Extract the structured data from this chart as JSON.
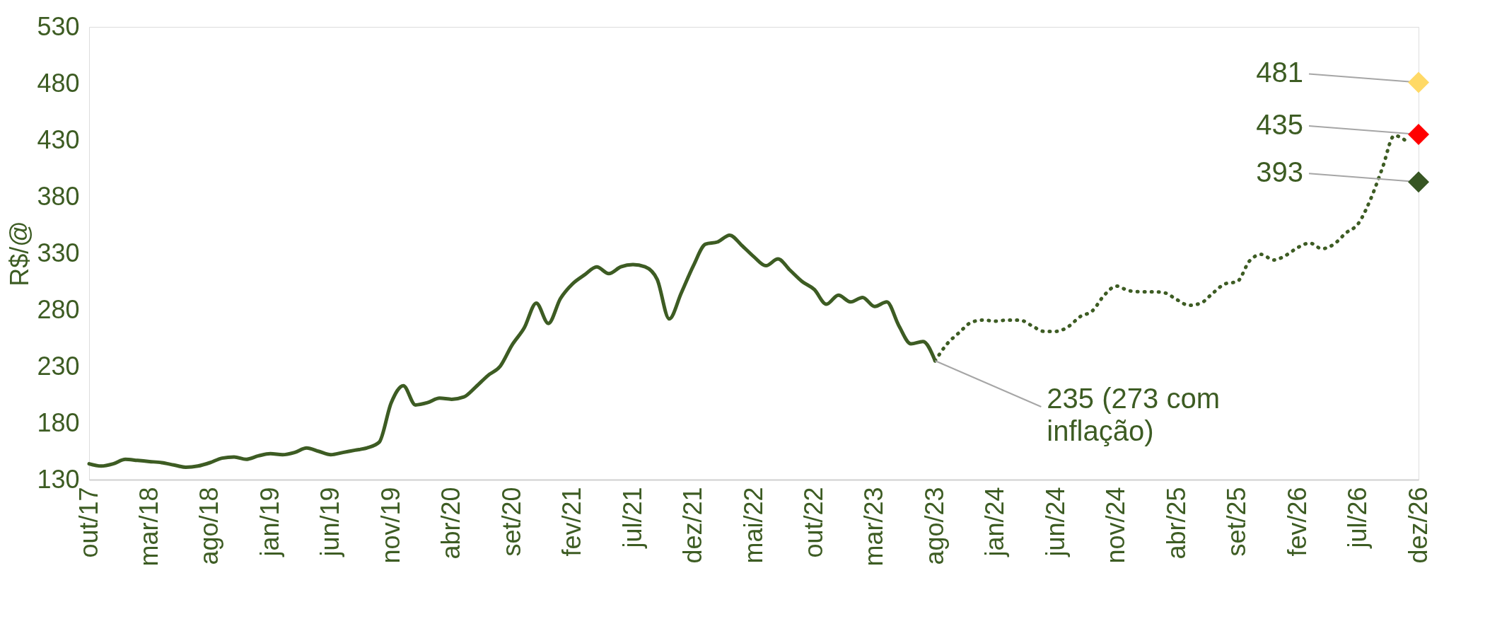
{
  "chart_data": {
    "type": "line",
    "ylabel": "R$/@",
    "categories": [
      "out/17",
      null,
      null,
      null,
      null,
      "mar/18",
      null,
      null,
      null,
      null,
      "ago/18",
      null,
      null,
      null,
      null,
      "jan/19",
      null,
      null,
      null,
      null,
      "jun/19",
      null,
      null,
      null,
      null,
      "nov/19",
      null,
      null,
      null,
      null,
      "abr/20",
      null,
      null,
      null,
      null,
      "set/20",
      null,
      null,
      null,
      null,
      "fev/21",
      null,
      null,
      null,
      null,
      "jul/21",
      null,
      null,
      null,
      null,
      "dez/21",
      null,
      null,
      null,
      null,
      "mai/22",
      null,
      null,
      null,
      null,
      "out/22",
      null,
      null,
      null,
      null,
      "mar/23",
      null,
      null,
      null,
      null,
      "ago/23",
      null,
      null,
      null,
      null,
      "jan/24",
      null,
      null,
      null,
      null,
      "jun/24",
      null,
      null,
      null,
      null,
      "nov/24",
      null,
      null,
      null,
      null,
      "abr/25",
      null,
      null,
      null,
      null,
      "set/25",
      null,
      null,
      null,
      null,
      "fev/26",
      null,
      null,
      null,
      null,
      "jul/26",
      null,
      null,
      null,
      null,
      "dez/26"
    ],
    "series": [
      {
        "color": "#3d5c23",
        "line_style": "solid",
        "values": [
          144,
          142,
          144,
          148,
          147,
          146,
          145,
          143,
          141,
          142,
          145,
          149,
          150,
          148,
          151,
          153,
          152,
          154,
          158,
          155,
          152,
          154,
          156,
          158,
          163,
          198,
          213,
          196,
          198,
          202,
          201,
          203,
          212,
          222,
          230,
          249,
          264,
          286,
          268,
          290,
          303,
          311,
          318,
          312,
          318,
          320,
          318,
          307,
          272,
          295,
          319,
          338,
          340,
          346,
          337,
          327,
          319,
          325,
          315,
          305,
          298,
          285,
          293,
          287,
          291,
          283,
          287,
          266,
          250,
          252,
          235,
          null,
          null,
          null,
          null,
          null,
          null,
          null,
          null,
          null,
          null,
          null,
          null,
          null,
          null,
          null,
          null,
          null,
          null,
          null,
          null,
          null,
          null,
          null,
          null,
          null,
          null,
          null,
          null,
          null,
          null,
          null,
          null,
          null,
          null,
          null,
          null,
          null,
          null,
          null,
          null
        ]
      },
      {
        "color": "#3d5c23",
        "line_style": "dotted",
        "values": [
          null,
          null,
          null,
          null,
          null,
          null,
          null,
          null,
          null,
          null,
          null,
          null,
          null,
          null,
          null,
          null,
          null,
          null,
          null,
          null,
          null,
          null,
          null,
          null,
          null,
          null,
          null,
          null,
          null,
          null,
          null,
          null,
          null,
          null,
          null,
          null,
          null,
          null,
          null,
          null,
          null,
          null,
          null,
          null,
          null,
          null,
          null,
          null,
          null,
          null,
          null,
          null,
          null,
          null,
          null,
          null,
          null,
          null,
          null,
          null,
          null,
          null,
          null,
          null,
          null,
          null,
          null,
          null,
          null,
          null,
          235,
          250,
          260,
          269,
          271,
          270,
          271,
          271,
          266,
          261,
          261,
          265,
          274,
          279,
          293,
          301,
          297,
          296,
          296,
          295,
          289,
          284,
          286,
          295,
          303,
          305,
          323,
          329,
          324,
          328,
          335,
          339,
          334,
          338,
          348,
          356,
          377,
          405,
          434,
          429,
          null
        ]
      },
      {
        "type": "scatter",
        "marker": "diamond",
        "color": "#ffd966",
        "x": [
          "dez/26"
        ],
        "values": [
          481
        ],
        "value_labels": [
          "481"
        ]
      },
      {
        "type": "scatter",
        "marker": "diamond",
        "color": "#ff0000",
        "x": [
          "dez/26"
        ],
        "values": [
          435
        ],
        "value_labels": [
          "435"
        ]
      },
      {
        "type": "scatter",
        "marker": "diamond",
        "color": "#375623",
        "x": [
          "dez/26"
        ],
        "values": [
          393
        ],
        "value_labels": [
          "393"
        ]
      }
    ],
    "annotations": [
      {
        "text": "235 (273 com\ninflação)",
        "x": "ago/23",
        "y": 235
      }
    ],
    "ylim": [
      130,
      530
    ],
    "yticks": [
      130,
      180,
      230,
      280,
      330,
      380,
      430,
      480,
      530
    ],
    "grid": false
  }
}
